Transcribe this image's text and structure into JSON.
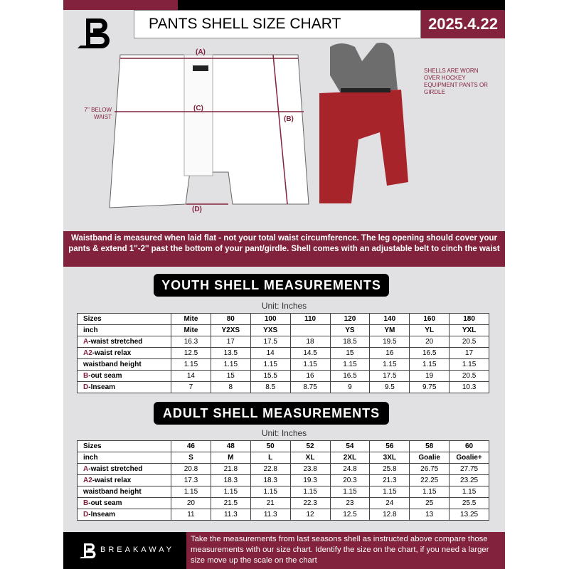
{
  "header": {
    "title": "PANTS SHELL SIZE CHART",
    "date": "2025.4.22"
  },
  "diagram": {
    "label_a": "(A)",
    "label_b": "(B)",
    "label_c": "(C)",
    "label_d": "(D)",
    "waist_note": "7'' BELOW WAIST",
    "shell_note": "SHELLS ARE WORN OVER HOCKEY EQUIPMENT PANTS OR GIRDLE"
  },
  "banner": "Waistband is measured when laid flat - not your total waist circumference. The leg opening should cover your pants & extend 1''-2'' past the bottom of your pant/girdle. Shell comes with an adjustable belt to cinch the waist",
  "youth": {
    "title": "YOUTH SHELL MEASUREMENTS",
    "unit": "Unit: Inches",
    "rows": [
      {
        "pre": "",
        "label": "Sizes",
        "cells": [
          "Mite",
          "80",
          "100",
          "110",
          "120",
          "140",
          "160",
          "180"
        ]
      },
      {
        "pre": "",
        "label": "inch",
        "cells": [
          "Mite",
          "Y2XS",
          "YXS",
          "",
          "YS",
          "YM",
          "YL",
          "YXL"
        ]
      },
      {
        "pre": "A",
        "label": "-waist stretched",
        "cells": [
          "16.3",
          "17",
          "17.5",
          "18",
          "18.5",
          "19.5",
          "20",
          "20.5"
        ]
      },
      {
        "pre": "A2",
        "label": "-waist relax",
        "cells": [
          "12.5",
          "13.5",
          "14",
          "14.5",
          "15",
          "16",
          "16.5",
          "17"
        ]
      },
      {
        "pre": "",
        "label": "waistband height",
        "cells": [
          "1.15",
          "1.15",
          "1.15",
          "1.15",
          "1.15",
          "1.15",
          "1.15",
          "1.15"
        ]
      },
      {
        "pre": "B",
        "label": "-out seam",
        "cells": [
          "14",
          "15",
          "15.5",
          "16",
          "16.5",
          "17.5",
          "19",
          "20.5"
        ]
      },
      {
        "pre": "D",
        "label": "-Inseam",
        "cells": [
          "7",
          "8",
          "8.5",
          "8.75",
          "9",
          "9.5",
          "9.75",
          "10.3"
        ]
      }
    ]
  },
  "adult": {
    "title": "ADULT SHELL MEASUREMENTS",
    "unit": "Unit: Inches",
    "rows": [
      {
        "pre": "",
        "label": "Sizes",
        "cells": [
          "46",
          "48",
          "50",
          "52",
          "54",
          "56",
          "58",
          "60"
        ]
      },
      {
        "pre": "",
        "label": "inch",
        "cells": [
          "S",
          "M",
          "L",
          "XL",
          "2XL",
          "3XL",
          "Goalie",
          "Goalie+"
        ]
      },
      {
        "pre": "A",
        "label": "-waist stretched",
        "cells": [
          "20.8",
          "21.8",
          "22.8",
          "23.8",
          "24.8",
          "25.8",
          "26.75",
          "27.75"
        ]
      },
      {
        "pre": "A2",
        "label": "-waist relax",
        "cells": [
          "17.3",
          "18.3",
          "18.3",
          "19.3",
          "20.3",
          "21.3",
          "22.25",
          "23.25"
        ]
      },
      {
        "pre": "",
        "label": "waistband height",
        "cells": [
          "1.15",
          "1.15",
          "1.15",
          "1.15",
          "1.15",
          "1.15",
          "1.15",
          "1.15"
        ]
      },
      {
        "pre": "B",
        "label": "-out seam",
        "cells": [
          "20",
          "21.5",
          "21",
          "22.3",
          "23",
          "24",
          "25",
          "25.5"
        ]
      },
      {
        "pre": "D",
        "label": "-Inseam",
        "cells": [
          "11",
          "11.3",
          "11.3",
          "12",
          "12.5",
          "12.8",
          "13",
          "13.25"
        ]
      }
    ]
  },
  "footer": {
    "brand": "BREAKAWAY",
    "text": "Take the measurements from last seasons shell as instructed above compare those measurements  with our size chart. Identify the size on the chart, if you need a larger size move up the scale on the chart"
  },
  "colors": {
    "accent": "#82223c",
    "dark": "#000000",
    "background": "#e1e1e4"
  }
}
